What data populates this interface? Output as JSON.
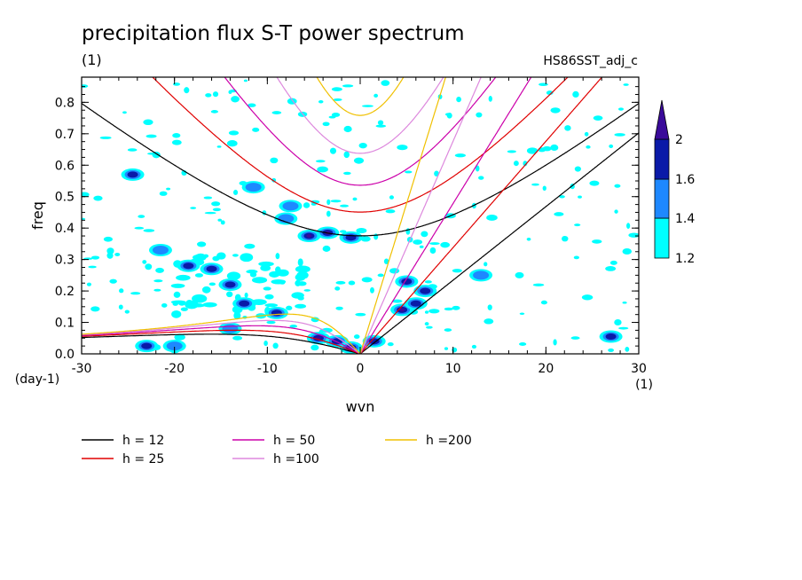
{
  "chart_data": {
    "type": "contour",
    "title": "precipitation flux S-T power spectrum",
    "units_label": "(1)",
    "dataset_label": "HS86SST_adj_c",
    "xlabel": "wvn",
    "ylabel": "freq",
    "x_unit_label": "(1)",
    "y_unit_label": "(day-1)",
    "xlim": [
      -30,
      30
    ],
    "ylim": [
      0,
      0.88
    ],
    "x_ticks": [
      -30,
      -20,
      -10,
      0,
      10,
      20,
      30
    ],
    "x_tick_labels": [
      "-30",
      "-20",
      "-10",
      "0",
      "10",
      "20",
      "30"
    ],
    "y_ticks": [
      0,
      0.1,
      0.2,
      0.3,
      0.4,
      0.5,
      0.6,
      0.7,
      0.8
    ],
    "y_tick_labels": [
      "0.0",
      "0.1",
      "0.2",
      "0.3",
      "0.4",
      "0.5",
      "0.6",
      "0.7",
      "0.8"
    ],
    "colorbar": {
      "levels": [
        1.2,
        1.4,
        1.6,
        2
      ],
      "labels": [
        "1.2",
        "1.4",
        "1.6",
        "2"
      ],
      "colors": [
        "#00ffff",
        "#1e88ff",
        "#0a1aa8",
        "#3a0a9a"
      ]
    },
    "dispersion_curves": [
      {
        "name": "h = 12",
        "h": 12,
        "color": "#000000"
      },
      {
        "name": "h = 25",
        "h": 25,
        "color": "#e00000"
      },
      {
        "name": "h = 50",
        "h": 50,
        "color": "#cc00aa"
      },
      {
        "name": "h =100",
        "h": 100,
        "color": "#dd88dd"
      },
      {
        "name": "h =200",
        "h": 200,
        "color": "#f0c000"
      }
    ],
    "blobs": [
      {
        "x": -5.5,
        "y": 0.375,
        "v": 2
      },
      {
        "x": -3.5,
        "y": 0.385,
        "v": 2
      },
      {
        "x": -1.0,
        "y": 0.37,
        "v": 1.6
      },
      {
        "x": -8.0,
        "y": 0.43,
        "v": 1.4
      },
      {
        "x": -7.5,
        "y": 0.47,
        "v": 1.4
      },
      {
        "x": -4.5,
        "y": 0.05,
        "v": 2
      },
      {
        "x": -2.5,
        "y": 0.04,
        "v": 1.6
      },
      {
        "x": -1.0,
        "y": 0.02,
        "v": 2
      },
      {
        "x": 1.5,
        "y": 0.04,
        "v": 1.6
      },
      {
        "x": 4.5,
        "y": 0.14,
        "v": 2
      },
      {
        "x": 6.0,
        "y": 0.16,
        "v": 1.6
      },
      {
        "x": 7.0,
        "y": 0.2,
        "v": 1.6
      },
      {
        "x": 5.0,
        "y": 0.23,
        "v": 1.6
      },
      {
        "x": -12.5,
        "y": 0.16,
        "v": 1.6
      },
      {
        "x": -14.0,
        "y": 0.22,
        "v": 1.6
      },
      {
        "x": -16.0,
        "y": 0.27,
        "v": 1.6
      },
      {
        "x": -9.0,
        "y": 0.13,
        "v": 1.6
      },
      {
        "x": -18.5,
        "y": 0.28,
        "v": 1.6
      },
      {
        "x": -21.5,
        "y": 0.33,
        "v": 1.4
      },
      {
        "x": -24.5,
        "y": 0.57,
        "v": 1.6
      },
      {
        "x": -23.0,
        "y": 0.025,
        "v": 1.6
      },
      {
        "x": -20.0,
        "y": 0.025,
        "v": 1.4
      },
      {
        "x": 27.0,
        "y": 0.055,
        "v": 1.6
      },
      {
        "x": -14.0,
        "y": 0.08,
        "v": 1.4
      },
      {
        "x": 13.0,
        "y": 0.25,
        "v": 1.4
      },
      {
        "x": -11.5,
        "y": 0.53,
        "v": 1.4
      }
    ]
  },
  "legend": [
    {
      "label": "h = 12",
      "color": "#000000"
    },
    {
      "label": "h = 25",
      "color": "#e00000"
    },
    {
      "label": "h = 50",
      "color": "#cc00aa"
    },
    {
      "label": "h =100",
      "color": "#dd88dd"
    },
    {
      "label": "h =200",
      "color": "#f0c000"
    }
  ]
}
